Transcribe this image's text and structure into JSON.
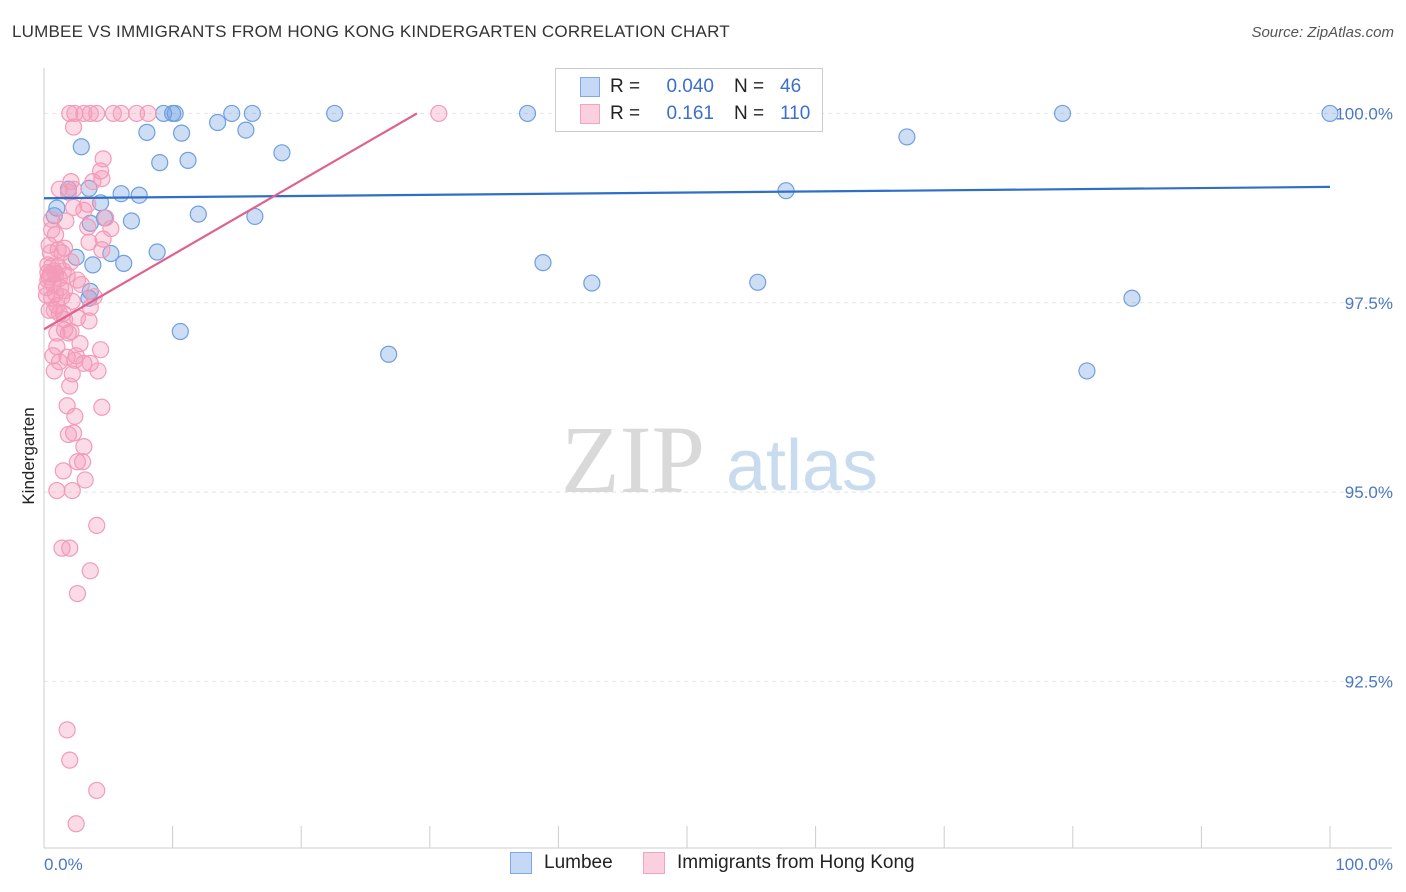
{
  "title": "LUMBEE VS IMMIGRANTS FROM HONG KONG KINDERGARTEN CORRELATION CHART",
  "source": "Source: ZipAtlas.com",
  "watermark": {
    "zip": "ZIP",
    "atlas": "atlas"
  },
  "legend": {
    "r_label": "R =",
    "n_label": "N =",
    "rows": [
      {
        "r": "0.040",
        "n": "46",
        "color": "#7fa8e8"
      },
      {
        "r": "0.161",
        "n": "110",
        "color": "#f4a3bd"
      }
    ]
  },
  "chart_data": {
    "type": "scatter",
    "ylabel": "Kindergarten",
    "xlim": [
      0,
      100
    ],
    "ylim": [
      90.3,
      100.6
    ],
    "y_ticks": [
      {
        "value": 100.0,
        "label": "100.0%"
      },
      {
        "value": 97.5,
        "label": "97.5%"
      },
      {
        "value": 95.0,
        "label": "95.0%"
      },
      {
        "value": 92.5,
        "label": "92.5%"
      }
    ],
    "x_ticks": [
      {
        "value": 0,
        "label": "0.0%"
      },
      {
        "value": 100,
        "label": "100.0%"
      }
    ],
    "grid": true,
    "series": [
      {
        "name": "Lumbee",
        "color": "#6f9fe0",
        "line_color": "#2f6fc8",
        "trend": {
          "x": [
            0,
            100
          ],
          "y": [
            98.88,
            99.03
          ]
        },
        "points": [
          [
            9.3,
            100
          ],
          [
            10,
            100
          ],
          [
            10.2,
            100
          ],
          [
            14.6,
            100
          ],
          [
            16.2,
            100
          ],
          [
            22.6,
            100
          ],
          [
            37.6,
            100
          ],
          [
            58.4,
            100
          ],
          [
            79.2,
            100
          ],
          [
            100,
            100
          ],
          [
            13.5,
            99.88
          ],
          [
            8.0,
            99.75
          ],
          [
            10.7,
            99.74
          ],
          [
            15.7,
            99.78
          ],
          [
            2.9,
            99.56
          ],
          [
            18.5,
            99.48
          ],
          [
            9.0,
            99.35
          ],
          [
            11.2,
            99.38
          ],
          [
            3.5,
            99.01
          ],
          [
            6.0,
            98.94
          ],
          [
            7.4,
            98.92
          ],
          [
            57.7,
            98.98
          ],
          [
            67.1,
            99.69
          ],
          [
            1.0,
            98.75
          ],
          [
            4.4,
            98.82
          ],
          [
            12.0,
            98.67
          ],
          [
            16.4,
            98.64
          ],
          [
            4.7,
            98.62
          ],
          [
            6.8,
            98.58
          ],
          [
            3.6,
            98.55
          ],
          [
            8.8,
            98.17
          ],
          [
            5.2,
            98.15
          ],
          [
            3.8,
            98.0
          ],
          [
            6.2,
            98.02
          ],
          [
            38.8,
            98.03
          ],
          [
            42.6,
            97.76
          ],
          [
            55.5,
            97.77
          ],
          [
            3.6,
            97.65
          ],
          [
            84.6,
            97.56
          ],
          [
            10.6,
            97.12
          ],
          [
            26.8,
            96.82
          ],
          [
            81.1,
            96.6
          ],
          [
            1.9,
            99.0
          ],
          [
            0.8,
            98.65
          ],
          [
            3.5,
            97.56
          ],
          [
            2.5,
            98.1
          ]
        ]
      },
      {
        "name": "Immigrants from Hong Kong",
        "color": "#f39ab8",
        "line_color": "#e0608e",
        "trend": {
          "x": [
            0,
            29
          ],
          "y": [
            97.15,
            100.0
          ]
        },
        "points": [
          [
            2.0,
            100
          ],
          [
            2.4,
            100
          ],
          [
            3.1,
            100
          ],
          [
            3.6,
            100
          ],
          [
            4.1,
            100
          ],
          [
            5.4,
            100
          ],
          [
            6.0,
            100
          ],
          [
            7.2,
            100
          ],
          [
            8.1,
            100
          ],
          [
            30.7,
            100
          ],
          [
            2.3,
            99.82
          ],
          [
            4.6,
            99.4
          ],
          [
            3.8,
            99.1
          ],
          [
            4.4,
            99.24
          ],
          [
            4.5,
            99.14
          ],
          [
            1.2,
            99.0
          ],
          [
            1.9,
            98.96
          ],
          [
            2.3,
            98.76
          ],
          [
            3.1,
            98.72
          ],
          [
            4.8,
            98.62
          ],
          [
            5.2,
            98.48
          ],
          [
            3.4,
            98.5
          ],
          [
            0.6,
            98.46
          ],
          [
            0.9,
            98.4
          ],
          [
            1.1,
            98.2
          ],
          [
            1.6,
            98.22
          ],
          [
            1.4,
            98.16
          ],
          [
            0.5,
            98.16
          ],
          [
            2.1,
            98.04
          ],
          [
            4.5,
            98.2
          ],
          [
            3.5,
            98.3
          ],
          [
            0.6,
            97.98
          ],
          [
            0.3,
            97.9
          ],
          [
            1.5,
            97.92
          ],
          [
            0.9,
            97.88
          ],
          [
            1.8,
            97.86
          ],
          [
            0.4,
            97.84
          ],
          [
            1.2,
            97.82
          ],
          [
            2.6,
            97.8
          ],
          [
            0.7,
            97.74
          ],
          [
            1.6,
            97.66
          ],
          [
            0.9,
            97.62
          ],
          [
            1.4,
            97.58
          ],
          [
            0.6,
            97.56
          ],
          [
            2.2,
            97.52
          ],
          [
            3.6,
            97.44
          ],
          [
            0.8,
            97.4
          ],
          [
            1.2,
            97.36
          ],
          [
            2.6,
            97.3
          ],
          [
            1.6,
            97.28
          ],
          [
            3.5,
            97.26
          ],
          [
            1.6,
            97.14
          ],
          [
            1.9,
            97.1
          ],
          [
            2.1,
            97.12
          ],
          [
            1.0,
            96.92
          ],
          [
            2.8,
            96.96
          ],
          [
            4.4,
            96.88
          ],
          [
            0.7,
            96.8
          ],
          [
            1.8,
            96.78
          ],
          [
            2.4,
            96.74
          ],
          [
            3.6,
            96.7
          ],
          [
            1.2,
            96.72
          ],
          [
            4.2,
            96.6
          ],
          [
            0.8,
            96.6
          ],
          [
            2.2,
            96.56
          ],
          [
            2.0,
            96.4
          ],
          [
            1.8,
            96.14
          ],
          [
            4.5,
            96.12
          ],
          [
            2.4,
            96.0
          ],
          [
            1.9,
            95.76
          ],
          [
            2.3,
            95.78
          ],
          [
            3.1,
            95.6
          ],
          [
            2.6,
            95.4
          ],
          [
            3.0,
            95.4
          ],
          [
            1.5,
            95.28
          ],
          [
            3.2,
            95.16
          ],
          [
            1.0,
            95.02
          ],
          [
            2.2,
            95.02
          ],
          [
            4.1,
            94.56
          ],
          [
            1.4,
            94.26
          ],
          [
            2.0,
            94.26
          ],
          [
            3.6,
            93.96
          ],
          [
            2.6,
            93.66
          ],
          [
            1.8,
            91.86
          ],
          [
            2.0,
            91.46
          ],
          [
            4.1,
            91.06
          ],
          [
            2.5,
            90.62
          ],
          [
            0.2,
            97.7
          ],
          [
            0.3,
            98.0
          ],
          [
            0.5,
            97.88
          ],
          [
            1.0,
            97.46
          ],
          [
            0.3,
            97.8
          ],
          [
            0.4,
            98.26
          ],
          [
            2.3,
            99.0
          ],
          [
            3.4,
            98.8
          ],
          [
            4.6,
            98.34
          ],
          [
            0.2,
            97.6
          ],
          [
            1.3,
            97.7
          ],
          [
            2.9,
            97.74
          ],
          [
            0.4,
            97.4
          ],
          [
            3.1,
            96.7
          ],
          [
            2.5,
            96.8
          ],
          [
            1.0,
            97.1
          ],
          [
            0.6,
            98.6
          ],
          [
            1.1,
            97.98
          ],
          [
            3.9,
            97.58
          ],
          [
            1.7,
            98.58
          ],
          [
            2.1,
            99.1
          ],
          [
            0.8,
            97.92
          ],
          [
            1.5,
            97.36
          ]
        ]
      }
    ]
  }
}
